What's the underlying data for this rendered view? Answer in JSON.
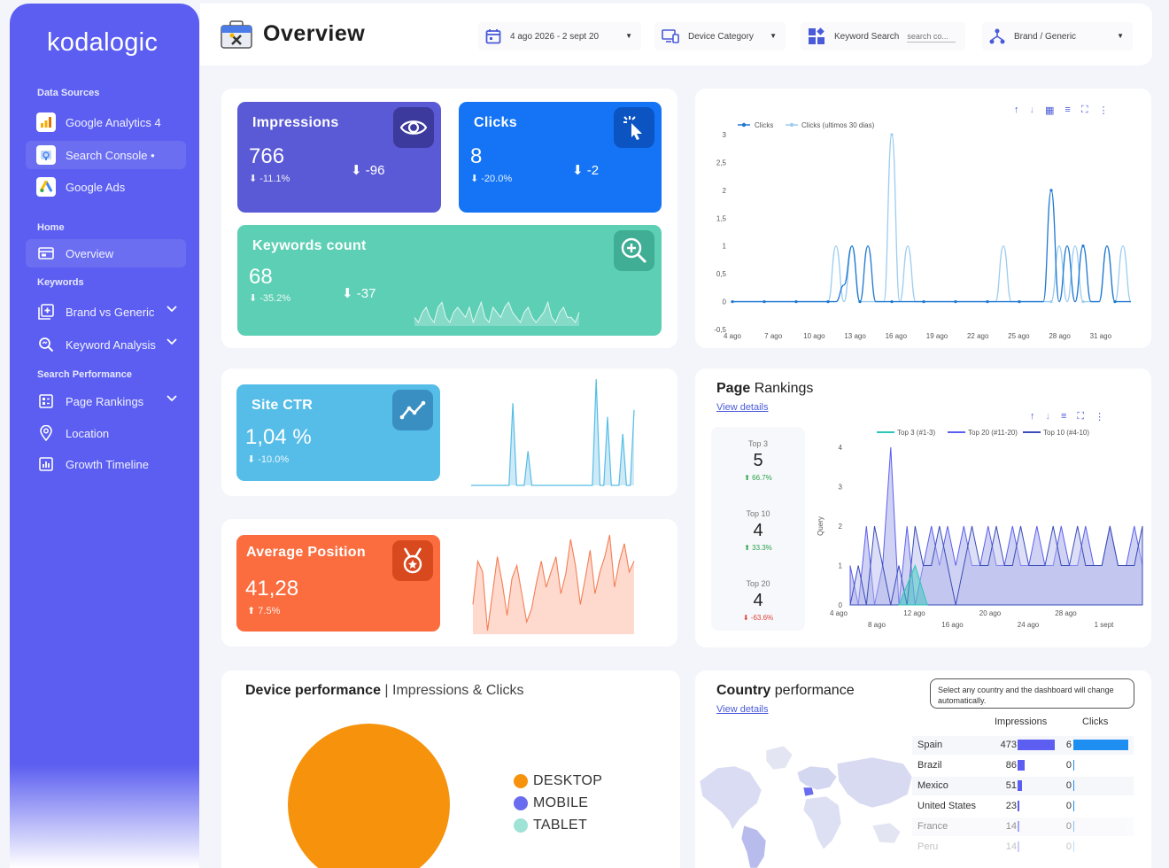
{
  "sidebar": {
    "logo": "kodalogic",
    "sections": [
      {
        "label": "Data Sources"
      },
      {
        "label": "Home"
      },
      {
        "label": "Keywords"
      },
      {
        "label": "Search Performance"
      }
    ],
    "items": [
      {
        "label": "Google Analytics 4",
        "icon": "google-analytics-icon"
      },
      {
        "label": "Search Console •",
        "icon": "search-console-icon"
      },
      {
        "label": "Google Ads",
        "icon": "google-ads-icon"
      },
      {
        "label": "Overview",
        "icon": "overview-icon"
      },
      {
        "label": "Brand vs Generic",
        "icon": "plus-box-icon"
      },
      {
        "label": "Keyword Analysis",
        "icon": "magnifier-icon"
      },
      {
        "label": "Page Rankings",
        "icon": "page-list-icon"
      },
      {
        "label": "Location",
        "icon": "location-pin-icon"
      },
      {
        "label": "Growth Timeline",
        "icon": "bar-chart-icon"
      }
    ]
  },
  "header": {
    "title": "Overview",
    "date_range": "4 ago 2026 - 2 sept 20",
    "device_category": "Device Category",
    "keyword_search_label": "Keyword Search",
    "keyword_search_placeholder": "search co...",
    "brand_generic": "Brand / Generic"
  },
  "kpis": {
    "impressions": {
      "title": "Impressions",
      "value": "766",
      "pct": "⬇ -11.1%",
      "delta": "⬇ -96",
      "color": "#5b5ad6"
    },
    "clicks": {
      "title": "Clicks",
      "value": "8",
      "pct": "⬇ -20.0%",
      "delta": "⬇ -2",
      "color": "#1574f5"
    },
    "keywords": {
      "title": "Keywords count",
      "value": "68",
      "pct": "⬇ -35.2%",
      "delta": "⬇ -37",
      "color": "#5ccfb4",
      "spark": [
        3,
        2,
        4,
        5,
        3,
        2,
        5,
        6,
        3,
        2,
        4,
        5,
        4,
        3,
        5,
        2,
        4,
        6,
        3,
        2,
        5,
        4,
        3,
        5,
        6,
        4,
        3,
        2,
        4,
        5,
        3,
        2,
        3,
        4,
        6,
        3,
        2,
        4,
        5,
        3,
        3,
        2,
        4
      ]
    },
    "site_ctr": {
      "title": "Site CTR",
      "value": "1,04 %",
      "pct": "⬇ -10.0%",
      "color": "#55bde8",
      "spark": [
        0,
        0,
        0,
        0,
        0,
        0,
        0,
        0,
        0,
        0,
        0,
        2.4,
        0,
        0,
        0,
        1,
        0,
        0,
        0,
        0,
        0,
        0,
        0,
        0,
        0,
        0,
        0,
        0,
        0,
        0,
        0,
        0,
        0,
        3.1,
        0,
        0,
        2,
        0,
        0,
        0,
        1.5,
        0,
        0,
        2.2
      ]
    },
    "avg_position": {
      "title": "Average Position",
      "value": "41,28",
      "pct": "⬆ 7.5%",
      "color": "#fb6d3f",
      "spark": [
        60,
        40,
        45,
        72,
        55,
        38,
        50,
        65,
        48,
        42,
        55,
        68,
        62,
        50,
        40,
        52,
        45,
        38,
        55,
        46,
        30,
        42,
        60,
        48,
        35,
        55,
        45,
        38,
        28,
        52,
        40,
        32,
        45,
        40
      ]
    }
  },
  "clicks_chart": {
    "type": "line",
    "legend": [
      "Clicks",
      "Clicks (ultimos 30 dias)"
    ],
    "x_ticks": [
      "4 ago",
      "7 ago",
      "10 ago",
      "13 ago",
      "16 ago",
      "19 ago",
      "22 ago",
      "25 ago",
      "28 ago",
      "31 ago"
    ],
    "y_ticks": [
      "3",
      "2,5",
      "2",
      "1,5",
      "1",
      "0,5",
      "0",
      "-0,5"
    ],
    "series": [
      {
        "name": "Clicks",
        "values": [
          0,
          0,
          0,
          0,
          0,
          0,
          0,
          0,
          0,
          1,
          0,
          0,
          0,
          0,
          0,
          0,
          0,
          0,
          0,
          0,
          0,
          0,
          0,
          0,
          0,
          0,
          0,
          0,
          0,
          0,
          0,
          0,
          0,
          0,
          0,
          0,
          0,
          0,
          0,
          0,
          0,
          0
        ]
      },
      {
        "name": "Clicks (ultimos 30 dias)",
        "values": [
          0,
          0,
          0,
          0,
          0,
          0,
          0,
          0,
          0,
          0,
          1,
          0,
          0,
          0,
          0,
          0,
          0,
          0,
          0,
          0,
          0,
          0,
          0,
          0,
          0,
          0,
          0,
          0,
          0,
          0,
          0,
          0,
          0,
          0,
          0,
          0,
          0,
          0,
          0,
          0,
          0,
          0
        ]
      }
    ]
  },
  "page_rankings": {
    "title_bold": "Page",
    "title_rest": " Rankings",
    "view_details": "View details",
    "boxes": [
      {
        "label": "Top 3",
        "value": "5",
        "change": "⬆ 66.7%",
        "color": "#2aa34a"
      },
      {
        "label": "Top 10",
        "value": "4",
        "change": "⬆ 33.3%",
        "color": "#2aa34a"
      },
      {
        "label": "Top 20",
        "value": "4",
        "change": "⬇ -63.6%",
        "color": "#e0413a"
      }
    ],
    "legend": [
      "Top 3 (#1-3)",
      "Top 20 (#11-20)",
      "Top 10 (#4-10)"
    ],
    "y_label": "Query",
    "y_ticks": [
      "4",
      "3",
      "2",
      "1",
      "0"
    ],
    "x_ticks_top": [
      "4 ago",
      "12 ago",
      "20 ago",
      "28 ago"
    ],
    "x_ticks_bottom": [
      "8 ago",
      "16 ago",
      "24 ago",
      "1 sept"
    ]
  },
  "device": {
    "title_bold": "Device performance",
    "title_rest": " | Impressions & Clicks",
    "legend": [
      {
        "label": "DESKTOP",
        "color": "#f6920c"
      },
      {
        "label": "MOBILE",
        "color": "#6a6cf0"
      },
      {
        "label": "TABLET",
        "color": "#9fe2d6"
      }
    ]
  },
  "country": {
    "title_bold": "Country",
    "title_rest": " performance",
    "view_details": "View details",
    "tooltip": "Select any country and the dashboard will change automatically.",
    "col_impressions": "Impressions",
    "col_clicks": "Clicks",
    "rows": [
      {
        "name": "Spain",
        "impressions": "473",
        "imp_val": 473,
        "clicks": "6",
        "clk_val": 6
      },
      {
        "name": "Brazil",
        "impressions": "86",
        "imp_val": 86,
        "clicks": "0",
        "clk_val": 0
      },
      {
        "name": "Mexico",
        "impressions": "51",
        "imp_val": 51,
        "clicks": "0",
        "clk_val": 0
      },
      {
        "name": "United States",
        "impressions": "23",
        "imp_val": 23,
        "clicks": "0",
        "clk_val": 0
      },
      {
        "name": "France",
        "impressions": "14",
        "imp_val": 14,
        "clicks": "0",
        "clk_val": 0
      },
      {
        "name": "Peru",
        "impressions": "14",
        "imp_val": 14,
        "clicks": "0",
        "clk_val": 0
      }
    ]
  }
}
